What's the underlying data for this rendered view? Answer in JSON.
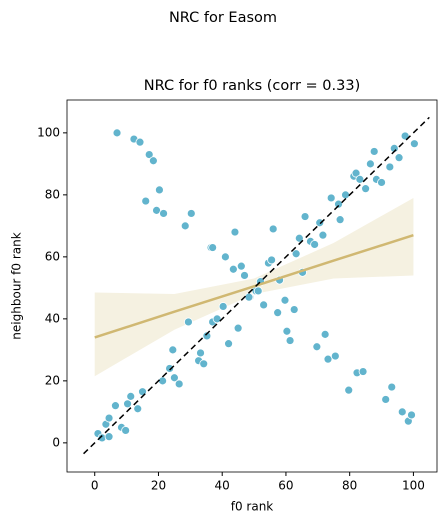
{
  "chart_data": {
    "type": "scatter",
    "suptitle": "NRC for Easom",
    "title": "NRC for f0 ranks (corr = 0.33)",
    "xlabel": "f0 rank",
    "ylabel": "neighbour f0 rank",
    "xlim": [
      -8.7,
      107.4
    ],
    "ylim": [
      -9.4,
      110.6
    ],
    "xticks": [
      0,
      20,
      40,
      60,
      80,
      100
    ],
    "yticks": [
      0,
      20,
      40,
      60,
      80,
      100
    ],
    "color": "#62b4cd",
    "x": [
      7,
      12.3,
      14.2,
      17.1,
      18.4,
      16,
      20.3,
      19.4,
      21.6,
      28.4,
      30.3,
      36.5,
      37,
      41,
      44,
      43.5,
      46,
      47,
      42,
      45,
      48.7,
      50.6,
      52,
      53,
      54.5,
      55.5,
      56,
      58,
      57.4,
      59.7,
      60.3,
      61.3,
      62.6,
      63.2,
      64.2,
      65.2,
      66,
      67.7,
      69,
      69.7,
      70.6,
      71.6,
      72.3,
      73.2,
      75.5,
      74.2,
      76.5,
      77,
      78.7,
      79.7,
      81.3,
      82,
      82.3,
      84.2,
      83.2,
      85,
      86.5,
      87.7,
      88.4,
      90,
      91.3,
      93.2,
      92.6,
      94,
      95.5,
      96.5,
      97.4,
      98.4,
      99.4,
      100.3,
      1,
      2.3,
      3.5,
      4.5,
      4.5,
      6.5,
      8.4,
      9.7,
      10.3,
      11.3,
      13.5,
      15,
      21.3,
      23.5,
      24.5,
      25,
      26.5,
      29.4,
      32.6,
      33.2,
      34.2,
      35.2,
      37,
      38.4,
      40.3,
      48.4,
      51.3
    ],
    "values": [
      100,
      98,
      97,
      93,
      91,
      78,
      81.6,
      75,
      74,
      70,
      74,
      63,
      63,
      60,
      68,
      56,
      57,
      54,
      32,
      37,
      47,
      49,
      52,
      44.5,
      58,
      59,
      69,
      52.5,
      42,
      46,
      36,
      33,
      43,
      61,
      66,
      55,
      73,
      65,
      64,
      31,
      71,
      67,
      35,
      27,
      28,
      79,
      77,
      72,
      80,
      17,
      86,
      87,
      22.6,
      23,
      85,
      82,
      90,
      94,
      85,
      84,
      14,
      18,
      89,
      95,
      92,
      10,
      99,
      7,
      9,
      96.5,
      3,
      1.6,
      6,
      8,
      2,
      12,
      5,
      4,
      12.6,
      15,
      11,
      16.5,
      20,
      24,
      30,
      21,
      19,
      39,
      26.5,
      29,
      25.5,
      34.5,
      39,
      40,
      44,
      47,
      49
    ],
    "fit": {
      "color": "#d0b872",
      "band_color": "#f5f1e1",
      "x": [
        0,
        25,
        50,
        75,
        100
      ],
      "values": [
        34,
        42.3,
        50.5,
        58.8,
        67
      ],
      "lower": [
        21.5,
        36.5,
        48,
        53,
        54
      ],
      "upper": [
        48.5,
        48,
        53,
        64.5,
        79
      ]
    },
    "diagonal": {
      "color": "#000000",
      "x": [
        -3.5,
        105
      ],
      "values": [
        -3.5,
        105
      ]
    }
  }
}
